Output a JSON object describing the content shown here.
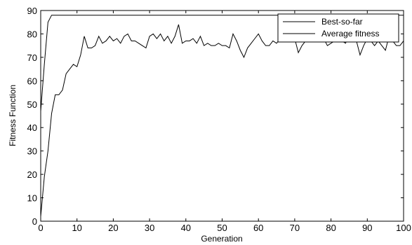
{
  "chart_data": {
    "type": "line",
    "xlabel": "Generation",
    "ylabel": "Fitness Function",
    "xlim": [
      0,
      100
    ],
    "ylim": [
      0,
      90
    ],
    "x_ticks": [
      0,
      10,
      20,
      30,
      40,
      50,
      60,
      70,
      80,
      90,
      100
    ],
    "y_ticks": [
      0,
      10,
      20,
      30,
      40,
      50,
      60,
      70,
      80,
      90
    ],
    "grid": false,
    "legend_position": "top-right",
    "colors": {
      "line": "#000000",
      "axes": "#000000",
      "background": "#ffffff"
    },
    "series": [
      {
        "name": "Best-so-far",
        "x": [
          0,
          1,
          2,
          3,
          4,
          100
        ],
        "y": [
          47,
          67,
          85,
          88,
          88,
          88
        ]
      },
      {
        "name": "Average fitness",
        "x": [
          0,
          1,
          2,
          3,
          4,
          5,
          6,
          7,
          8,
          9,
          10,
          11,
          12,
          13,
          14,
          15,
          16,
          17,
          18,
          19,
          20,
          21,
          22,
          23,
          24,
          25,
          26,
          27,
          28,
          29,
          30,
          31,
          32,
          33,
          34,
          35,
          36,
          37,
          38,
          39,
          40,
          41,
          42,
          43,
          44,
          45,
          46,
          47,
          48,
          49,
          50,
          51,
          52,
          53,
          54,
          55,
          56,
          57,
          58,
          59,
          60,
          61,
          62,
          63,
          64,
          65,
          66,
          67,
          68,
          69,
          70,
          71,
          72,
          73,
          74,
          75,
          76,
          77,
          78,
          79,
          80,
          81,
          82,
          83,
          84,
          85,
          86,
          87,
          88,
          89,
          90,
          91,
          92,
          93,
          94,
          95,
          96,
          97,
          98,
          99,
          100
        ],
        "y": [
          2,
          19,
          30,
          46,
          54,
          54,
          56,
          63,
          65,
          67,
          66,
          71,
          79,
          74,
          74,
          75,
          79,
          76,
          77,
          79,
          77,
          78,
          76,
          79,
          80,
          77,
          77,
          76,
          75,
          74,
          79,
          80,
          78,
          80,
          77,
          79,
          76,
          79,
          84,
          76,
          77,
          77,
          78,
          76,
          79,
          75,
          76,
          75,
          75,
          76,
          75,
          75,
          74,
          80,
          77,
          73,
          70,
          74,
          76,
          78,
          80,
          77,
          75,
          75,
          77,
          76,
          78,
          78,
          77,
          77,
          78,
          72,
          75,
          77,
          79,
          77,
          80,
          77,
          78,
          75,
          76,
          77,
          78,
          77,
          76,
          79,
          78,
          77,
          71,
          75,
          78,
          77,
          75,
          77,
          75,
          73,
          79,
          77,
          75,
          75,
          77
        ]
      }
    ]
  }
}
